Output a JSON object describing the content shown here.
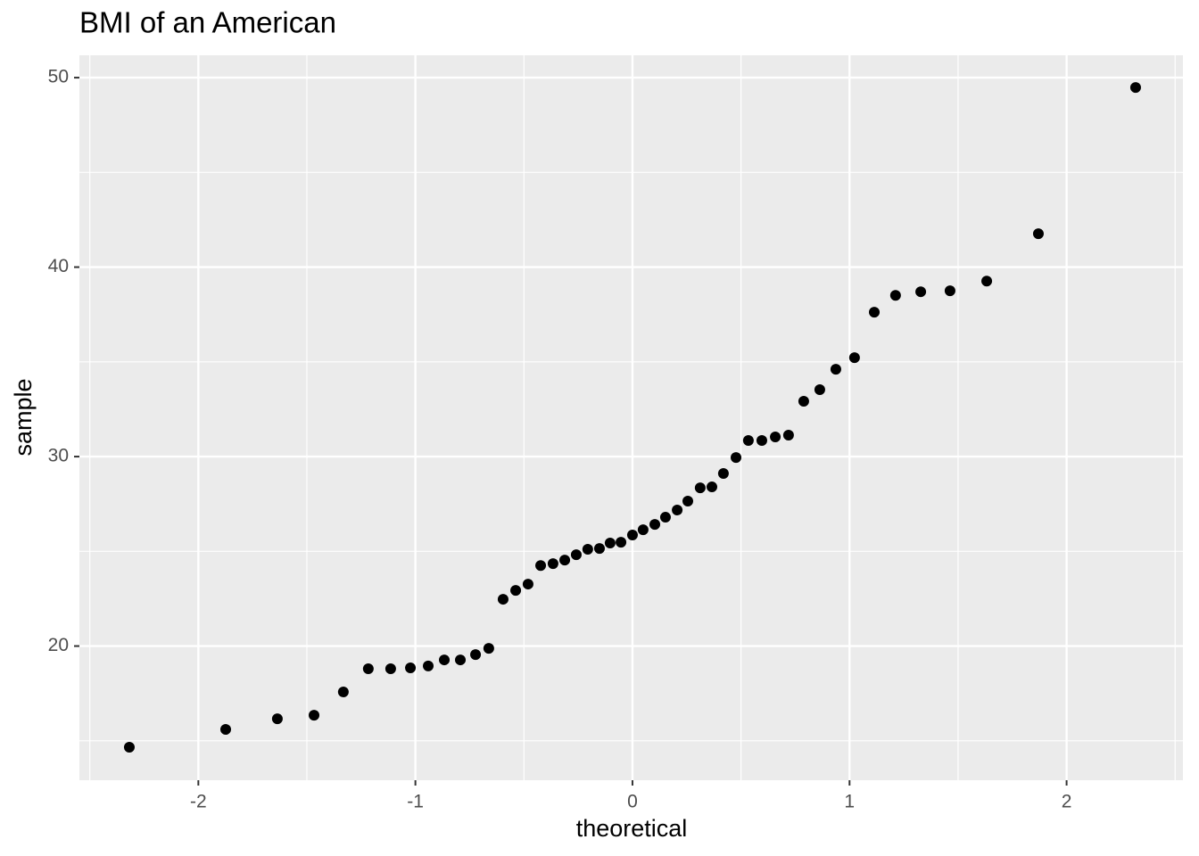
{
  "chart_data": {
    "type": "scatter",
    "title": "BMI of an American",
    "x_label": "theoretical",
    "y_label": "sample",
    "color": "#000000",
    "grid": true,
    "xlim": [
      -2.548,
      2.536
    ],
    "ylim": [
      12.92,
      51.18
    ],
    "xticks": [
      -2,
      -1,
      0,
      1,
      2
    ],
    "yticks": [
      20,
      30,
      40,
      50
    ],
    "x": [
      -2.318,
      -1.874,
      -1.636,
      -1.467,
      -1.332,
      -1.217,
      -1.114,
      -1.023,
      -0.941,
      -0.867,
      -0.793,
      -0.723,
      -0.662,
      -0.596,
      -0.538,
      -0.481,
      -0.423,
      -0.366,
      -0.312,
      -0.259,
      -0.206,
      -0.152,
      -0.103,
      -0.053,
      0,
      0.049,
      0.103,
      0.152,
      0.206,
      0.255,
      0.312,
      0.366,
      0.419,
      0.477,
      0.534,
      0.596,
      0.658,
      0.719,
      0.789,
      0.863,
      0.937,
      1.023,
      1.114,
      1.212,
      1.328,
      1.463,
      1.632,
      1.87,
      2.318
    ],
    "values": [
      14.66,
      15.6,
      16.16,
      16.35,
      17.58,
      18.8,
      18.8,
      18.85,
      18.95,
      19.27,
      19.27,
      19.55,
      19.88,
      22.47,
      22.94,
      23.27,
      24.25,
      24.35,
      24.54,
      24.82,
      25.11,
      25.15,
      25.44,
      25.48,
      25.86,
      26.14,
      26.42,
      26.8,
      27.18,
      27.65,
      28.35,
      28.4,
      29.11,
      29.95,
      30.85,
      30.85,
      31.04,
      31.13,
      32.92,
      33.53,
      34.61,
      35.22,
      37.62,
      38.51,
      38.7,
      38.75,
      39.26,
      41.76,
      49.48
    ]
  }
}
